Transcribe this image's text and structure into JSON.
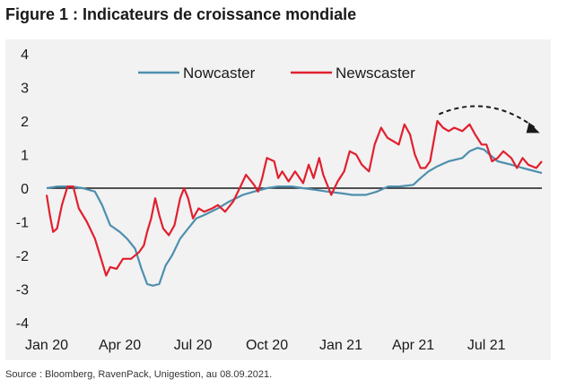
{
  "title": "Figure 1 : Indicateurs de croissance mondiale",
  "source": "Source : Bloomberg, RavenPack, Unigestion, au 08.09.2021.",
  "colors": {
    "panel": "#f2f2f2",
    "nowcaster": "#4e8fae",
    "newscaster": "#e0202f",
    "zero_line": "#1a1a1a",
    "arrow": "#1a1a1a"
  },
  "chart_data": {
    "type": "line",
    "title": "",
    "xlabel": "",
    "ylabel": "",
    "ylim": [
      -4,
      4
    ],
    "yticks": [
      "4",
      "3",
      "2",
      "1",
      "0",
      "-1",
      "-2",
      "-3",
      "-4"
    ],
    "xlim": [
      "2020-01-01",
      "2021-09-08"
    ],
    "xticks": [
      {
        "date": "2020-01-01",
        "label": "Jan 20"
      },
      {
        "date": "2020-04-01",
        "label": "Apr 20"
      },
      {
        "date": "2020-07-01",
        "label": "Jul 20"
      },
      {
        "date": "2020-10-01",
        "label": "Oct 20"
      },
      {
        "date": "2021-01-01",
        "label": "Jan 21"
      },
      {
        "date": "2021-04-01",
        "label": "Apr 21"
      },
      {
        "date": "2021-07-01",
        "label": "Jul 21"
      }
    ],
    "grid": false,
    "legend_position": "top-center",
    "annotation": "dashed curved arrow pointing down-right over the Newscaster peak (May–Sep 2021)",
    "series": [
      {
        "name": "Nowcaster",
        "color": "#4e8fae",
        "points": [
          [
            "2020-01-01",
            0.0
          ],
          [
            "2020-01-15",
            0.05
          ],
          [
            "2020-02-01",
            0.05
          ],
          [
            "2020-02-15",
            0.0
          ],
          [
            "2020-03-01",
            -0.1
          ],
          [
            "2020-03-10",
            -0.5
          ],
          [
            "2020-03-20",
            -1.1
          ],
          [
            "2020-04-01",
            -1.3
          ],
          [
            "2020-04-10",
            -1.5
          ],
          [
            "2020-04-20",
            -1.8
          ],
          [
            "2020-04-28",
            -2.4
          ],
          [
            "2020-05-05",
            -2.85
          ],
          [
            "2020-05-12",
            -2.9
          ],
          [
            "2020-05-20",
            -2.85
          ],
          [
            "2020-05-28",
            -2.3
          ],
          [
            "2020-06-05",
            -2.0
          ],
          [
            "2020-06-15",
            -1.5
          ],
          [
            "2020-06-25",
            -1.2
          ],
          [
            "2020-07-05",
            -0.9
          ],
          [
            "2020-07-15",
            -0.8
          ],
          [
            "2020-08-01",
            -0.6
          ],
          [
            "2020-08-15",
            -0.4
          ],
          [
            "2020-09-01",
            -0.2
          ],
          [
            "2020-09-15",
            -0.1
          ],
          [
            "2020-10-01",
            0.0
          ],
          [
            "2020-10-15",
            0.05
          ],
          [
            "2020-11-01",
            0.05
          ],
          [
            "2020-11-15",
            0.0
          ],
          [
            "2020-12-01",
            -0.05
          ],
          [
            "2020-12-15",
            -0.1
          ],
          [
            "2021-01-01",
            -0.15
          ],
          [
            "2021-01-15",
            -0.2
          ],
          [
            "2021-02-01",
            -0.2
          ],
          [
            "2021-02-15",
            -0.1
          ],
          [
            "2021-03-01",
            0.05
          ],
          [
            "2021-03-15",
            0.05
          ],
          [
            "2021-04-01",
            0.1
          ],
          [
            "2021-04-10",
            0.3
          ],
          [
            "2021-04-20",
            0.5
          ],
          [
            "2021-05-01",
            0.65
          ],
          [
            "2021-05-15",
            0.8
          ],
          [
            "2021-06-01",
            0.9
          ],
          [
            "2021-06-10",
            1.1
          ],
          [
            "2021-06-20",
            1.2
          ],
          [
            "2021-06-28",
            1.15
          ],
          [
            "2021-07-05",
            1.0
          ],
          [
            "2021-07-15",
            0.8
          ],
          [
            "2021-08-01",
            0.7
          ],
          [
            "2021-08-15",
            0.6
          ],
          [
            "2021-09-08",
            0.45
          ]
        ]
      },
      {
        "name": "Newscaster",
        "color": "#e0202f",
        "points": [
          [
            "2020-01-01",
            -0.2
          ],
          [
            "2020-01-05",
            -0.8
          ],
          [
            "2020-01-09",
            -1.3
          ],
          [
            "2020-01-14",
            -1.2
          ],
          [
            "2020-01-20",
            -0.5
          ],
          [
            "2020-01-27",
            0.05
          ],
          [
            "2020-02-03",
            0.05
          ],
          [
            "2020-02-10",
            -0.6
          ],
          [
            "2020-02-20",
            -1.0
          ],
          [
            "2020-03-01",
            -1.5
          ],
          [
            "2020-03-10",
            -2.2
          ],
          [
            "2020-03-15",
            -2.6
          ],
          [
            "2020-03-20",
            -2.35
          ],
          [
            "2020-03-28",
            -2.4
          ],
          [
            "2020-04-05",
            -2.1
          ],
          [
            "2020-04-15",
            -2.1
          ],
          [
            "2020-04-25",
            -1.9
          ],
          [
            "2020-05-01",
            -1.7
          ],
          [
            "2020-05-05",
            -1.3
          ],
          [
            "2020-05-10",
            -0.9
          ],
          [
            "2020-05-15",
            -0.3
          ],
          [
            "2020-05-20",
            -0.8
          ],
          [
            "2020-05-25",
            -1.2
          ],
          [
            "2020-06-01",
            -1.4
          ],
          [
            "2020-06-08",
            -1.1
          ],
          [
            "2020-06-15",
            -0.3
          ],
          [
            "2020-06-20",
            0.0
          ],
          [
            "2020-06-25",
            -0.3
          ],
          [
            "2020-07-01",
            -0.9
          ],
          [
            "2020-07-08",
            -0.6
          ],
          [
            "2020-07-15",
            -0.7
          ],
          [
            "2020-07-25",
            -0.6
          ],
          [
            "2020-08-01",
            -0.5
          ],
          [
            "2020-08-10",
            -0.7
          ],
          [
            "2020-08-20",
            -0.4
          ],
          [
            "2020-08-30",
            0.1
          ],
          [
            "2020-09-05",
            0.4
          ],
          [
            "2020-09-15",
            0.1
          ],
          [
            "2020-09-20",
            -0.1
          ],
          [
            "2020-09-25",
            0.3
          ],
          [
            "2020-10-01",
            0.9
          ],
          [
            "2020-10-10",
            0.8
          ],
          [
            "2020-10-15",
            0.3
          ],
          [
            "2020-10-20",
            0.5
          ],
          [
            "2020-10-28",
            0.2
          ],
          [
            "2020-11-05",
            0.5
          ],
          [
            "2020-11-15",
            0.15
          ],
          [
            "2020-11-22",
            0.7
          ],
          [
            "2020-11-28",
            0.3
          ],
          [
            "2020-12-05",
            0.9
          ],
          [
            "2020-12-10",
            0.4
          ],
          [
            "2020-12-20",
            -0.2
          ],
          [
            "2020-12-28",
            0.2
          ],
          [
            "2021-01-05",
            0.5
          ],
          [
            "2021-01-12",
            1.1
          ],
          [
            "2021-01-20",
            1.0
          ],
          [
            "2021-01-27",
            0.7
          ],
          [
            "2021-02-05",
            0.5
          ],
          [
            "2021-02-12",
            1.3
          ],
          [
            "2021-02-20",
            1.8
          ],
          [
            "2021-02-28",
            1.5
          ],
          [
            "2021-03-07",
            1.4
          ],
          [
            "2021-03-14",
            1.3
          ],
          [
            "2021-03-21",
            1.9
          ],
          [
            "2021-03-28",
            1.6
          ],
          [
            "2021-04-03",
            1.0
          ],
          [
            "2021-04-10",
            0.6
          ],
          [
            "2021-04-16",
            0.6
          ],
          [
            "2021-04-22",
            0.8
          ],
          [
            "2021-05-01",
            2.0
          ],
          [
            "2021-05-08",
            1.8
          ],
          [
            "2021-05-15",
            1.7
          ],
          [
            "2021-05-22",
            1.8
          ],
          [
            "2021-06-01",
            1.7
          ],
          [
            "2021-06-10",
            1.9
          ],
          [
            "2021-06-17",
            1.6
          ],
          [
            "2021-06-25",
            1.3
          ],
          [
            "2021-07-01",
            1.3
          ],
          [
            "2021-07-08",
            0.8
          ],
          [
            "2021-07-15",
            0.9
          ],
          [
            "2021-07-22",
            1.1
          ],
          [
            "2021-08-01",
            0.9
          ],
          [
            "2021-08-08",
            0.6
          ],
          [
            "2021-08-15",
            0.9
          ],
          [
            "2021-08-22",
            0.7
          ],
          [
            "2021-09-01",
            0.6
          ],
          [
            "2021-09-08",
            0.8
          ]
        ]
      }
    ]
  }
}
